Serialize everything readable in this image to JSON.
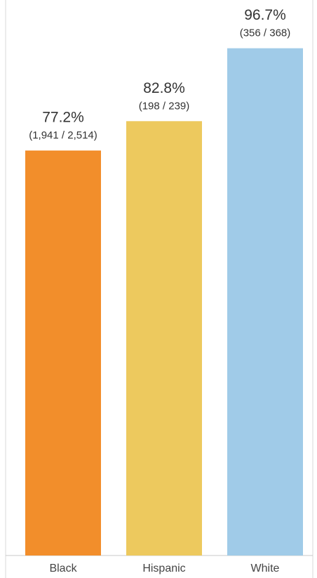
{
  "chart_data": {
    "type": "bar",
    "categories": [
      "Black",
      "Hispanic",
      "White"
    ],
    "values": [
      77.2,
      82.8,
      96.7
    ],
    "value_labels": [
      "77.2%",
      "82.8%",
      "96.7%"
    ],
    "count_labels": [
      "(1,941 / 2,514)",
      "(198 / 239)",
      "(356 / 368)"
    ],
    "colors": [
      "#f28e2b",
      "#edc95e",
      "#a0cbe8"
    ],
    "ylim": [
      0,
      100
    ]
  }
}
